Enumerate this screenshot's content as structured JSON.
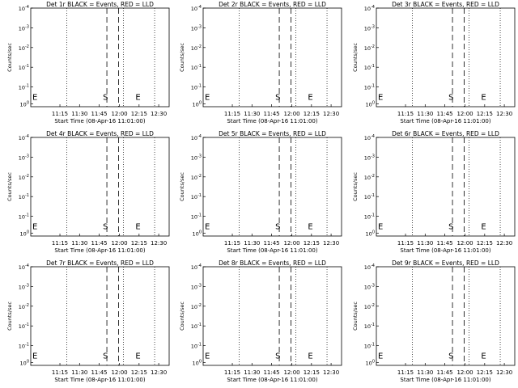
{
  "chart_data": {
    "type": "line",
    "xlabel": "Start Time (08-Apr-16 11:01:00)",
    "ylabel": "Counts/sec",
    "x_ticks": [
      "11:15",
      "11:30",
      "11:45",
      "12:00",
      "12:15",
      "12:30"
    ],
    "y_ticks": [
      {
        "base": "10",
        "exp": "-4"
      },
      {
        "base": "10",
        "exp": "-3"
      },
      {
        "base": "10",
        "exp": "-2"
      },
      {
        "base": "10",
        "exp": "-1"
      },
      {
        "base": "10",
        "exp": "-1"
      },
      {
        "base": "10",
        "exp": "0"
      }
    ],
    "title_suffix": "BLACK = Events, RED = LLD",
    "series": [],
    "panels": [
      {
        "det": "Det 1r",
        "s_label": "S",
        "e_label": "E",
        "end_label": "E"
      },
      {
        "det": "Det 2r",
        "s_label": "S",
        "e_label": "E",
        "end_label": "E"
      },
      {
        "det": "Det 3r",
        "s_label": "S",
        "e_label": "E",
        "end_label": "E"
      },
      {
        "det": "Det 4r",
        "s_label": "S",
        "e_label": "E",
        "end_label": "E"
      },
      {
        "det": "Det 5r",
        "s_label": "S",
        "e_label": "E",
        "end_label": "E"
      },
      {
        "det": "Det 6r",
        "s_label": "S",
        "e_label": "E",
        "end_label": "E"
      },
      {
        "det": "Det 7r",
        "s_label": "S",
        "e_label": "E",
        "end_label": "E"
      },
      {
        "det": "Det 8r",
        "s_label": "S",
        "e_label": "E",
        "end_label": "E"
      },
      {
        "det": "Det 9r",
        "s_label": "S",
        "e_label": "E",
        "end_label": "E"
      }
    ],
    "grid": false,
    "legend": "none"
  }
}
